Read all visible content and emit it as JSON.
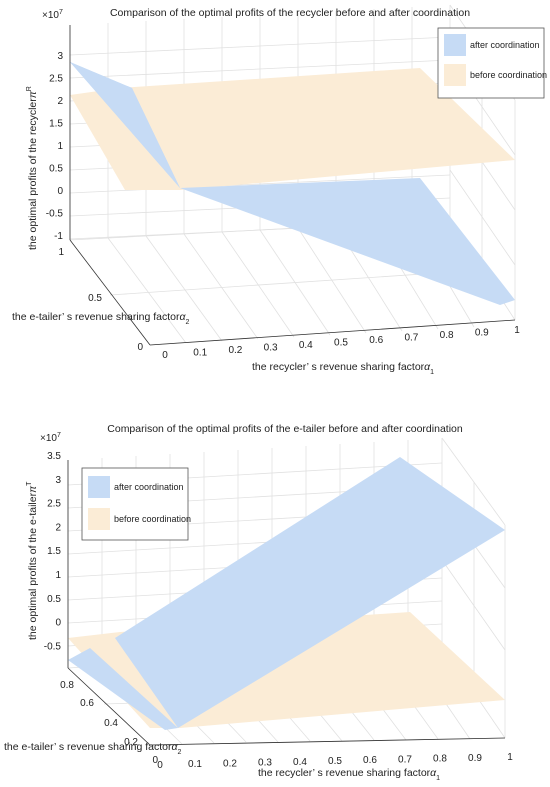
{
  "chart_data": [
    {
      "type": "surface",
      "title": "Comparison of the optimal profits of the recycler before and after coordination",
      "exponent_label": "×10",
      "exponent_power": "7",
      "xlabel": "the recycler’ s revenue sharing factor",
      "xlabel_math": "α",
      "xlabel_sub": "1",
      "ylabel": "the e-tailer’ s revenue sharing factor",
      "ylabel_math": "α",
      "ylabel_sub": "2",
      "zlabel": "the optimal profits of the recycler",
      "zlabel_math": "π",
      "zlabel_sup": "R",
      "x_ticks": [
        "0",
        "0.1",
        "0.2",
        "0.3",
        "0.4",
        "0.5",
        "0.6",
        "0.7",
        "0.8",
        "0.9",
        "1"
      ],
      "y_ticks": [
        "0",
        "0.5",
        "1"
      ],
      "z_ticks": [
        "3",
        "2.5",
        "2",
        "1.5",
        "1",
        "0.5",
        "0",
        "-0.5",
        "-1"
      ],
      "grid": true,
      "legend_position": "top-right",
      "series": [
        {
          "name": "after coordination",
          "color": "#c6dbf5"
        },
        {
          "name": "before coordination",
          "color": "#fbecd6"
        }
      ]
    },
    {
      "type": "surface",
      "title": "Comparison of the optimal profits of the e-tailer before and after coordination",
      "exponent_label": "×10",
      "exponent_power": "7",
      "xlabel": "the recycler’ s revenue sharing factor",
      "xlabel_math": "α",
      "xlabel_sub": "1",
      "ylabel": "the e-tailer’ s revenue sharing factor",
      "ylabel_math": "α",
      "ylabel_sub": "2",
      "zlabel": "the optimal profits of the e-tailer",
      "zlabel_math": "π",
      "zlabel_sup": "T",
      "x_ticks": [
        "0",
        "0.1",
        "0.2",
        "0.3",
        "0.4",
        "0.5",
        "0.6",
        "0.7",
        "0.8",
        "0.9",
        "1"
      ],
      "y_ticks": [
        "0",
        "0.2",
        "0.4",
        "0.6",
        "0.8"
      ],
      "z_ticks": [
        "3.5",
        "3",
        "2.5",
        "2",
        "1.5",
        "1",
        "0.5",
        "0",
        "-0.5"
      ],
      "grid": true,
      "legend_position": "top-left",
      "series": [
        {
          "name": "after coordination",
          "color": "#c6dbf5"
        },
        {
          "name": "before coordination",
          "color": "#fbecd6"
        }
      ]
    }
  ]
}
